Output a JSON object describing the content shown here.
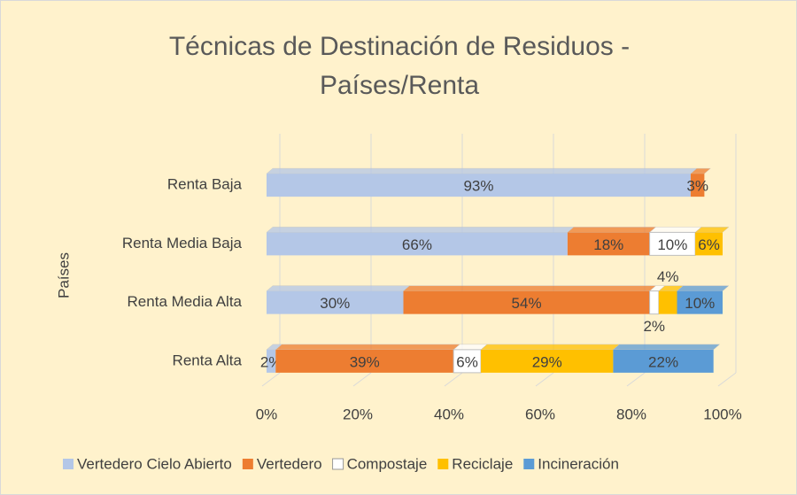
{
  "chart_data": {
    "type": "stacked-bar-horizontal",
    "title": "Técnicas de Destinación de Residuos - Países/Renta",
    "y_label": "Países",
    "categories": [
      "Renta Baja",
      "Renta Media Baja",
      "Renta Media Alta",
      "Renta Alta"
    ],
    "series": [
      {
        "name": "Vertedero Cielo Abierto",
        "color": "#b4c7e7",
        "values": [
          93,
          66,
          30,
          2
        ],
        "value_labels": [
          "93%",
          "66%",
          "30%",
          "2%"
        ]
      },
      {
        "name": "Vertedero",
        "color": "#ed7d31",
        "values": [
          3,
          18,
          54,
          39
        ],
        "value_labels": [
          "3%",
          "18%",
          "54%",
          "39%"
        ]
      },
      {
        "name": "Compostaje",
        "color": "#ffffff",
        "values": [
          null,
          10,
          2,
          6
        ],
        "value_labels": [
          null,
          "10%",
          "2%",
          "6%"
        ]
      },
      {
        "name": "Reciclaje",
        "color": "#ffc000",
        "values": [
          null,
          6,
          4,
          29
        ],
        "value_labels": [
          null,
          "6%",
          "4%",
          "29%"
        ]
      },
      {
        "name": "Incineración",
        "color": "#5b9bd5",
        "values": [
          null,
          null,
          10,
          22
        ],
        "value_labels": [
          null,
          null,
          "10%",
          "22%"
        ]
      }
    ],
    "xlim": [
      0,
      100
    ],
    "xticks": [
      {
        "value": 0,
        "label": "0%"
      },
      {
        "value": 20,
        "label": "20%"
      },
      {
        "value": 40,
        "label": "40%"
      },
      {
        "value": 60,
        "label": "60%"
      },
      {
        "value": 80,
        "label": "80%"
      },
      {
        "value": 100,
        "label": "100%"
      }
    ],
    "grid": true,
    "legend": "bottom"
  }
}
